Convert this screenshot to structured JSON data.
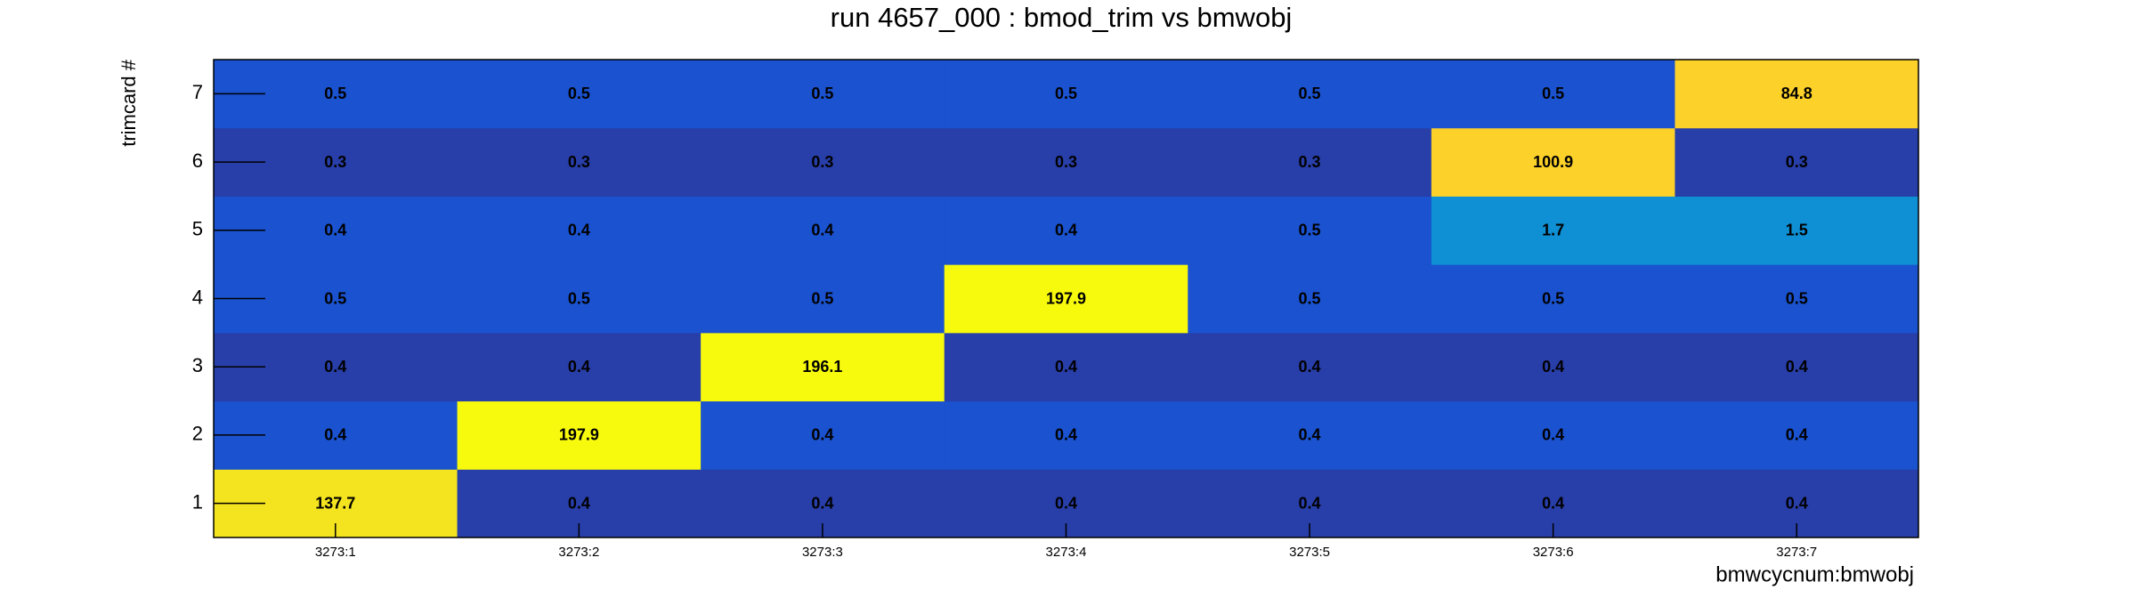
{
  "chart_data": {
    "type": "heatmap",
    "title": "run 4657_000 : bmod_trim vs bmwobj",
    "x_label": "bmwcycnum:bmwobj",
    "y_label": "trimcard #",
    "x_categories": [
      "3273:1",
      "3273:2",
      "3273:3",
      "3273:4",
      "3273:5",
      "3273:6",
      "3273:7"
    ],
    "y_categories": [
      "1",
      "2",
      "3",
      "4",
      "5",
      "6",
      "7"
    ],
    "z": [
      [
        137.7,
        0.4,
        0.4,
        0.4,
        0.4,
        0.4,
        0.4
      ],
      [
        0.4,
        197.9,
        0.4,
        0.4,
        0.4,
        0.4,
        0.4
      ],
      [
        0.4,
        0.4,
        196.1,
        0.4,
        0.4,
        0.4,
        0.4
      ],
      [
        0.5,
        0.5,
        0.5,
        197.9,
        0.5,
        0.5,
        0.5
      ],
      [
        0.4,
        0.4,
        0.4,
        0.4,
        0.5,
        1.7,
        1.5
      ],
      [
        0.3,
        0.3,
        0.3,
        0.3,
        0.3,
        100.9,
        0.3
      ],
      [
        0.5,
        0.5,
        0.5,
        0.5,
        0.5,
        0.5,
        84.8
      ]
    ],
    "cell_colors": [
      [
        "#f4e41f",
        "#283ea8",
        "#283ea8",
        "#283ea8",
        "#283ea8",
        "#283ea8",
        "#283ea8"
      ],
      [
        "#1a52cf",
        "#f8fa0d",
        "#1a52cf",
        "#1a52cf",
        "#1a52cf",
        "#1a52cf",
        "#1a52cf"
      ],
      [
        "#283ea8",
        "#283ea8",
        "#f8fa0d",
        "#283ea8",
        "#283ea8",
        "#283ea8",
        "#283ea8"
      ],
      [
        "#1a52cf",
        "#1a52cf",
        "#1a52cf",
        "#f8fa0d",
        "#1a52cf",
        "#1a52cf",
        "#1a52cf"
      ],
      [
        "#1a52cf",
        "#1a52cf",
        "#1a52cf",
        "#1a52cf",
        "#1a52cf",
        "#0f8fd4",
        "#0f8fd4"
      ],
      [
        "#283ea8",
        "#283ea8",
        "#283ea8",
        "#283ea8",
        "#283ea8",
        "#fcd12a",
        "#283ea8"
      ],
      [
        "#1a52cf",
        "#1a52cf",
        "#1a52cf",
        "#1a52cf",
        "#1a52cf",
        "#1a52cf",
        "#fcd12a"
      ]
    ]
  }
}
